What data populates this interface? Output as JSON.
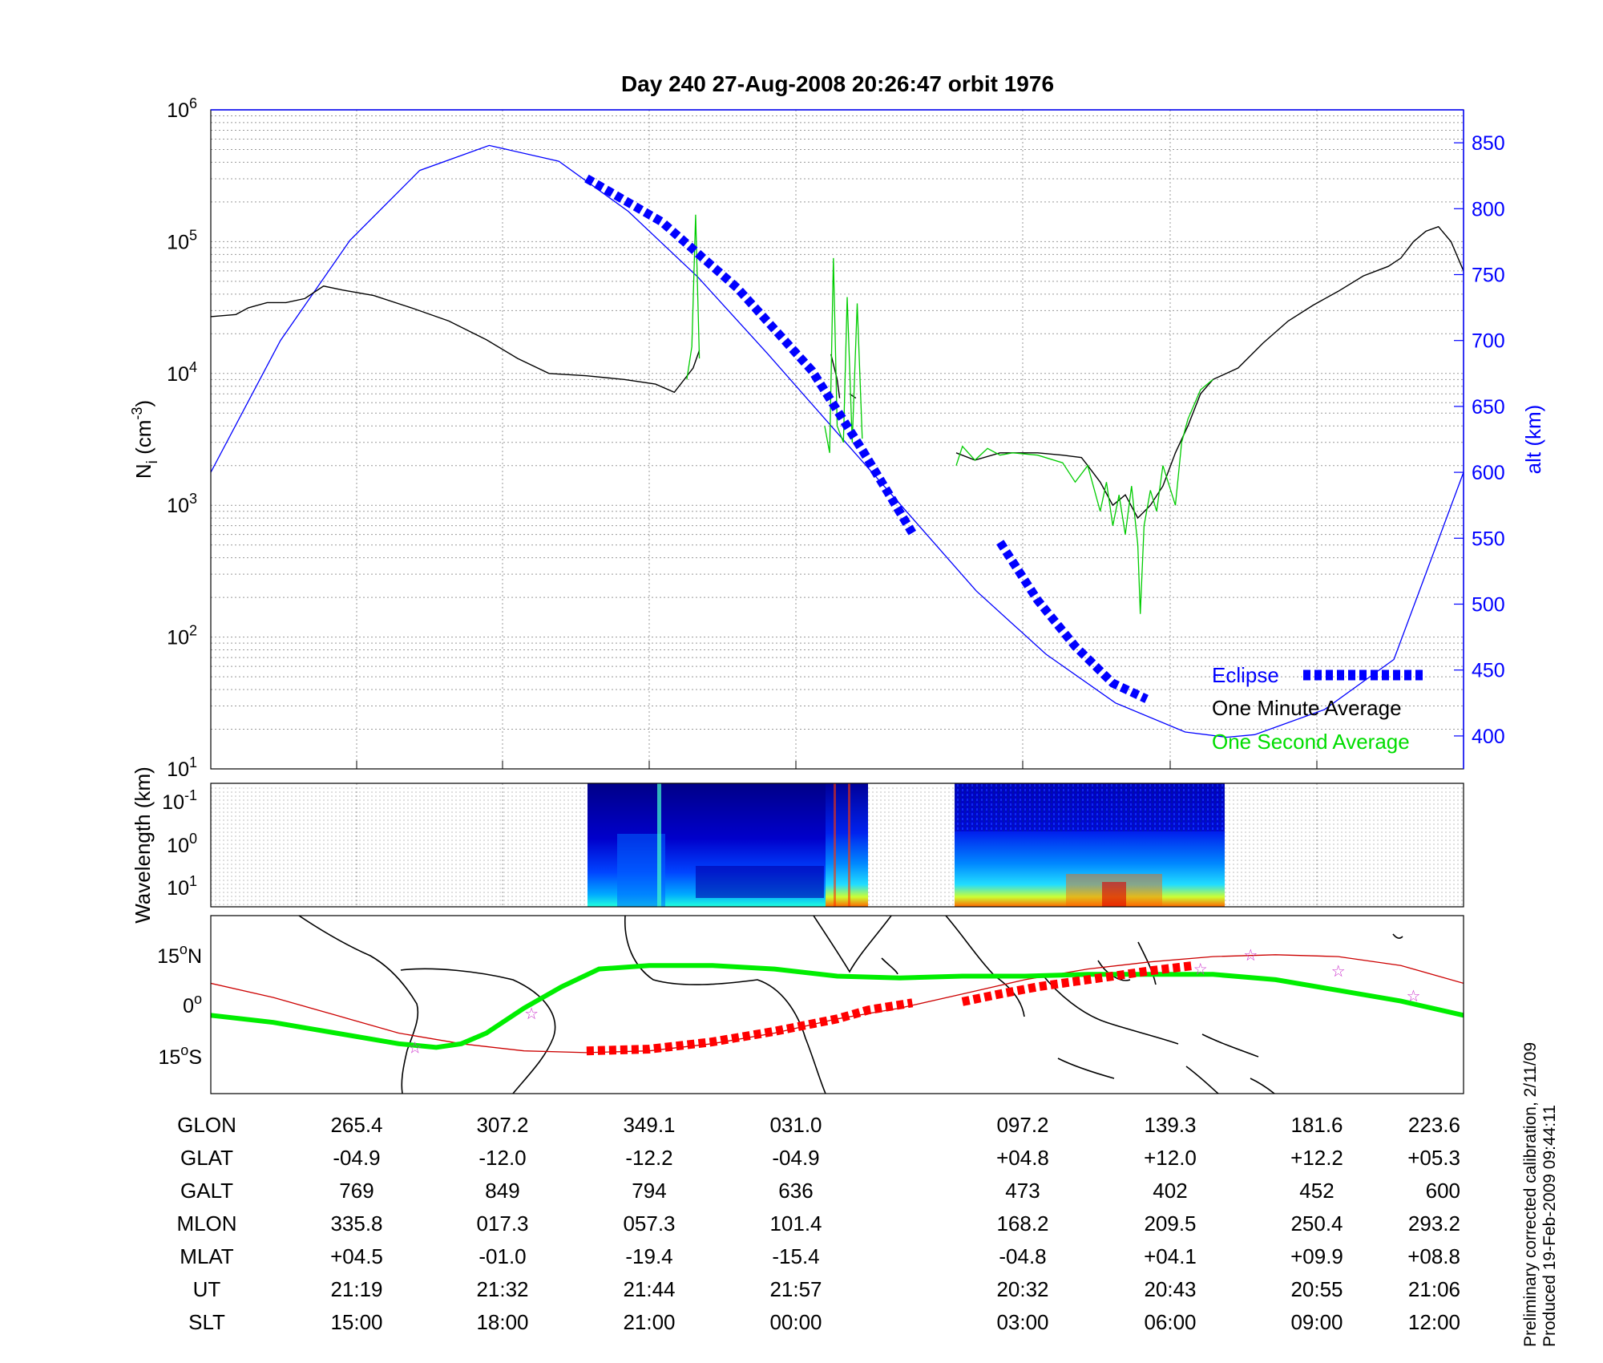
{
  "title": "Day 240  27-Aug-2008 20:26:47   orbit 1976",
  "side_note": [
    "Preliminary corrected calibration, 2/11/09",
    "Produced 19-Feb-2009 09:44:11"
  ],
  "colors": {
    "alt": "#0000ff",
    "minute": "#000000",
    "second": "#00cc00",
    "eclipse": "#0000ff",
    "eclipse_track": "#ff0000",
    "track": "#00ee00",
    "mag": "#cc0000",
    "star": "#cc33cc"
  },
  "chart_data": [
    {
      "type": "line",
      "ylabel": "N_i (cm^-3)",
      "ylabel_main": "N",
      "ylabel_sub": "i",
      "ylabel_rest": " (cm",
      "ylabel_sup": "-3",
      "ylabel_end": ")",
      "y2label": "alt (km)",
      "yscale": "log",
      "ylim": [
        10,
        1000000
      ],
      "y_ticks": [
        {
          "base": "10",
          "exp": "1"
        },
        {
          "base": "10",
          "exp": "2"
        },
        {
          "base": "10",
          "exp": "3"
        },
        {
          "base": "10",
          "exp": "4"
        },
        {
          "base": "10",
          "exp": "5"
        },
        {
          "base": "10",
          "exp": "6"
        }
      ],
      "y2lim": [
        375,
        875
      ],
      "y2_ticks": [
        "400",
        "450",
        "500",
        "550",
        "600",
        "650",
        "700",
        "750",
        "800",
        "850"
      ],
      "grid": true,
      "legend_position": "bottom-right",
      "legend": [
        "Eclipse",
        "One Minute Average",
        "One Second Average"
      ],
      "series": [
        {
          "name": "alt",
          "axis": "right",
          "segments": [
            [
              [
                0.0,
                600
              ],
              [
                0.0556,
                700
              ],
              [
                0.1111,
                776
              ],
              [
                0.1667,
                829
              ],
              [
                0.2222,
                848
              ],
              [
                0.2778,
                836
              ],
              [
                0.3333,
                798
              ],
              [
                0.3889,
                748
              ],
              [
                0.4444,
                690
              ],
              [
                0.5,
                630
              ],
              [
                0.5556,
                570
              ],
              [
                0.6111,
                510
              ],
              [
                0.6667,
                462
              ],
              [
                0.7222,
                425
              ],
              [
                0.7778,
                403
              ],
              [
                0.8111,
                399
              ],
              [
                0.8333,
                401
              ],
              [
                0.8889,
                420
              ],
              [
                0.9444,
                458
              ],
              [
                1.0,
                600
              ]
            ]
          ]
        },
        {
          "name": "One Minute Average",
          "axis": "left",
          "segments": [
            [
              [
                0.0,
                27000
              ],
              [
                0.02,
                28000
              ],
              [
                0.03,
                31500
              ],
              [
                0.045,
                34500
              ],
              [
                0.06,
                34500
              ],
              [
                0.075,
                37000
              ],
              [
                0.09,
                46000
              ],
              [
                0.105,
                43000
              ],
              [
                0.13,
                39000
              ],
              [
                0.16,
                31500
              ],
              [
                0.19,
                25000
              ],
              [
                0.22,
                18000
              ],
              [
                0.245,
                13000
              ],
              [
                0.27,
                10000
              ],
              [
                0.3,
                9600
              ],
              [
                0.33,
                9000
              ],
              [
                0.355,
                8300
              ],
              [
                0.37,
                7200
              ],
              [
                0.385,
                11000
              ],
              [
                0.39,
                15000
              ]
            ],
            [
              [
                0.495,
                14000
              ],
              [
                0.5,
                9000
              ],
              [
                0.502,
                6500
              ]
            ],
            [
              [
                0.51,
                7000
              ],
              [
                0.515,
                6500
              ]
            ],
            [
              [
                0.595,
                2500
              ],
              [
                0.61,
                2200
              ],
              [
                0.63,
                2500
              ],
              [
                0.66,
                2500
              ],
              [
                0.68,
                2400
              ],
              [
                0.695,
                2300
              ],
              [
                0.7,
                2000
              ],
              [
                0.71,
                1500
              ],
              [
                0.72,
                1000
              ],
              [
                0.73,
                1200
              ],
              [
                0.74,
                800
              ],
              [
                0.75,
                1000
              ],
              [
                0.76,
                1400
              ],
              [
                0.77,
                2500
              ],
              [
                0.78,
                4000
              ],
              [
                0.79,
                7000
              ],
              [
                0.8,
                9000
              ],
              [
                0.82,
                11000
              ],
              [
                0.84,
                17000
              ],
              [
                0.86,
                25000
              ],
              [
                0.88,
                33000
              ],
              [
                0.9,
                42000
              ],
              [
                0.92,
                55000
              ],
              [
                0.94,
                65000
              ],
              [
                0.95,
                75000
              ],
              [
                0.96,
                100000
              ],
              [
                0.97,
                120000
              ],
              [
                0.98,
                130000
              ],
              [
                0.99,
                100000
              ],
              [
                1.0,
                60000
              ],
              [
                1.01,
                38000
              ],
              [
                1.02,
                28000
              ],
              [
                1.04,
                27000
              ],
              [
                1.06,
                27000
              ]
            ]
          ]
        },
        {
          "name": "One Second Average",
          "axis": "left",
          "segments": [
            [
              [
                0.38,
                9000
              ],
              [
                0.384,
                16000
              ],
              [
                0.387,
                160000
              ],
              [
                0.39,
                13000
              ]
            ],
            [
              [
                0.49,
                4000
              ],
              [
                0.494,
                2500
              ],
              [
                0.497,
                75000
              ],
              [
                0.5,
                4000
              ],
              [
                0.505,
                3000
              ],
              [
                0.508,
                38000
              ],
              [
                0.512,
                3000
              ],
              [
                0.516,
                34000
              ],
              [
                0.52,
                3200
              ]
            ],
            [
              [
                0.595,
                2000
              ],
              [
                0.6,
                2800
              ],
              [
                0.61,
                2200
              ],
              [
                0.62,
                2700
              ],
              [
                0.63,
                2400
              ],
              [
                0.64,
                2500
              ],
              [
                0.66,
                2400
              ],
              [
                0.68,
                2100
              ],
              [
                0.69,
                1500
              ],
              [
                0.7,
                2000
              ],
              [
                0.71,
                900
              ],
              [
                0.715,
                1500
              ],
              [
                0.72,
                700
              ],
              [
                0.725,
                1200
              ],
              [
                0.73,
                600
              ],
              [
                0.735,
                1400
              ],
              [
                0.74,
                500
              ],
              [
                0.742,
                150
              ],
              [
                0.745,
                700
              ],
              [
                0.75,
                1300
              ],
              [
                0.755,
                900
              ],
              [
                0.76,
                2000
              ],
              [
                0.77,
                1000
              ],
              [
                0.775,
                3000
              ],
              [
                0.78,
                4500
              ],
              [
                0.79,
                7500
              ],
              [
                0.8,
                9000
              ]
            ]
          ]
        },
        {
          "name": "Eclipse",
          "axis": "right",
          "segments": [
            [
              [
                0.3,
                823
              ],
              [
                0.36,
                790
              ],
              [
                0.42,
                740
              ],
              [
                0.48,
                677
              ],
              [
                0.52,
                617
              ],
              [
                0.56,
                554
              ]
            ],
            [
              [
                0.63,
                547
              ],
              [
                0.66,
                503
              ],
              [
                0.69,
                468
              ],
              [
                0.72,
                440
              ],
              [
                0.747,
                428
              ]
            ]
          ]
        }
      ]
    },
    {
      "type": "heatmap",
      "ylabel": "Wavelength (km)",
      "y_ticks": [
        {
          "base": "10",
          "exp": "-1"
        },
        {
          "base": "10",
          "exp": "0"
        },
        {
          "base": "10",
          "exp": "1"
        }
      ]
    },
    {
      "type": "line",
      "y_ticks": [
        {
          "deg": "15",
          "sup": "o",
          "hem": "N"
        },
        {
          "deg": "0",
          "sup": "o",
          "hem": ""
        },
        {
          "deg": "15",
          "sup": "o",
          "hem": "S"
        }
      ],
      "ylim": [
        -25,
        25
      ],
      "series": [
        {
          "name": "track",
          "points": [
            [
              0.0,
              -3
            ],
            [
              0.05,
              -5
            ],
            [
              0.1,
              -8
            ],
            [
              0.15,
              -11
            ],
            [
              0.18,
              -12
            ],
            [
              0.2,
              -11
            ],
            [
              0.22,
              -8
            ],
            [
              0.25,
              -1
            ],
            [
              0.28,
              5
            ],
            [
              0.31,
              10
            ],
            [
              0.35,
              11
            ],
            [
              0.4,
              11
            ],
            [
              0.45,
              10
            ],
            [
              0.5,
              8
            ],
            [
              0.55,
              7.5
            ],
            [
              0.6,
              8
            ],
            [
              0.65,
              8
            ],
            [
              0.7,
              8.5
            ],
            [
              0.75,
              8.5
            ],
            [
              0.8,
              8.5
            ],
            [
              0.85,
              7
            ],
            [
              0.9,
              4
            ],
            [
              0.95,
              1
            ],
            [
              1.0,
              -3
            ]
          ]
        },
        {
          "name": "magnetic",
          "points": [
            [
              0.0,
              6
            ],
            [
              0.05,
              2
            ],
            [
              0.1,
              -3
            ],
            [
              0.15,
              -8
            ],
            [
              0.2,
              -11
            ],
            [
              0.25,
              -13
            ],
            [
              0.3,
              -13.5
            ],
            [
              0.35,
              -13
            ],
            [
              0.4,
              -11
            ],
            [
              0.45,
              -8
            ],
            [
              0.5,
              -4
            ],
            [
              0.55,
              -1
            ],
            [
              0.6,
              3
            ],
            [
              0.65,
              7
            ],
            [
              0.7,
              10
            ],
            [
              0.75,
              12
            ],
            [
              0.8,
              13.5
            ],
            [
              0.85,
              14
            ],
            [
              0.9,
              13.5
            ],
            [
              0.95,
              11
            ],
            [
              1.0,
              6
            ]
          ]
        },
        {
          "name": "eclipse_track",
          "segments": [
            [
              [
                0.3,
                -13
              ],
              [
                0.35,
                -12.5
              ],
              [
                0.4,
                -10.5
              ],
              [
                0.45,
                -7.5
              ],
              [
                0.5,
                -4
              ],
              [
                0.525,
                -1.5
              ],
              [
                0.56,
                0.5
              ]
            ],
            [
              [
                0.6,
                0.8
              ],
              [
                0.63,
                3
              ],
              [
                0.66,
                5
              ],
              [
                0.69,
                6.5
              ],
              [
                0.72,
                8
              ],
              [
                0.75,
                9.5
              ],
              [
                0.785,
                11
              ]
            ]
          ]
        }
      ],
      "stars": [
        [
          0.163,
          -12
        ],
        [
          0.256,
          -2.5
        ],
        [
          0.79,
          10
        ],
        [
          0.83,
          14
        ],
        [
          0.9,
          9.5
        ],
        [
          0.96,
          2.5
        ]
      ]
    },
    {
      "type": "table",
      "rows": [
        {
          "label": "GLON",
          "values": [
            "265.4",
            "307.2",
            "349.1",
            "031.0",
            "097.2",
            "139.3",
            "181.6",
            "223.6"
          ]
        },
        {
          "label": "GLAT",
          "values": [
            "-04.9",
            "-12.0",
            "-12.2",
            "-04.9",
            "+04.8",
            "+12.0",
            "+12.2",
            "+05.3"
          ]
        },
        {
          "label": "GALT",
          "values": [
            "769",
            "849",
            "794",
            "636",
            "473",
            "402",
            "452",
            "600"
          ]
        },
        {
          "label": "MLON",
          "values": [
            "335.8",
            "017.3",
            "057.3",
            "101.4",
            "168.2",
            "209.5",
            "250.4",
            "293.2"
          ]
        },
        {
          "label": "MLAT",
          "values": [
            "+04.5",
            "-01.0",
            "-19.4",
            "-15.4",
            "-04.8",
            "+04.1",
            "+09.9",
            "+08.8"
          ]
        },
        {
          "label": "UT",
          "values": [
            "21:19",
            "21:32",
            "21:44",
            "21:57",
            "20:32",
            "20:43",
            "20:55",
            "21:06"
          ]
        },
        {
          "label": "SLT",
          "values": [
            "15:00",
            "18:00",
            "21:00",
            "00:00",
            "03:00",
            "06:00",
            "09:00",
            "12:00"
          ]
        }
      ]
    }
  ]
}
